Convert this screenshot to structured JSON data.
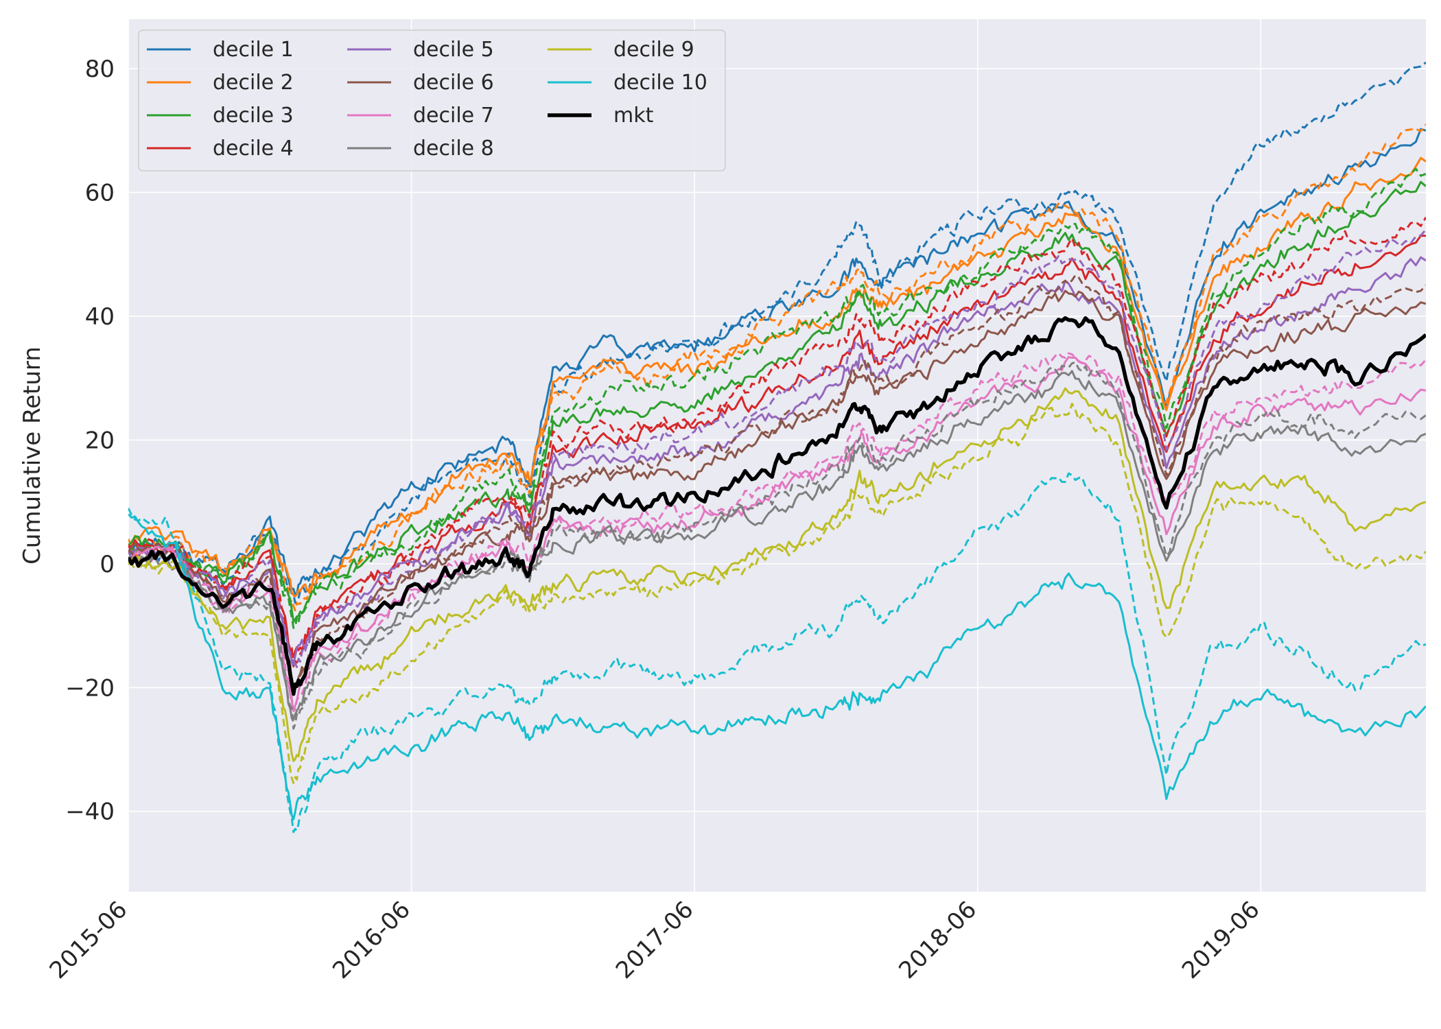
{
  "chart_data": {
    "type": "line",
    "title": "",
    "xlabel": "",
    "ylabel": "Cumulative Return",
    "x_tick_labels": [
      "2015-06",
      "2016-06",
      "2017-06",
      "2018-06",
      "2019-06"
    ],
    "x_tick_dates": [
      "2015-06",
      "2016-06",
      "2017-06",
      "2018-06",
      "2019-06"
    ],
    "xlim": [
      "2015-06",
      "2020-01"
    ],
    "y_ticks": [
      -40,
      -20,
      0,
      20,
      40,
      60,
      80
    ],
    "ylim": [
      -53,
      88
    ],
    "grid": true,
    "background": "#eaeaf2",
    "legend_position": "upper-left",
    "legend_columns": 3,
    "note_styles": "Each decile appears twice: one solid and one dashed line in the same color; mkt is a thick black solid line.",
    "x_dates": [
      "2015-06",
      "2015-08",
      "2015-10",
      "2015-12",
      "2016-01",
      "2016-02",
      "2016-04",
      "2016-06",
      "2016-08",
      "2016-10",
      "2016-11",
      "2016-12",
      "2017-02",
      "2017-04",
      "2017-06",
      "2017-08",
      "2017-10",
      "2017-12",
      "2018-01",
      "2018-02",
      "2018-04",
      "2018-06",
      "2018-08",
      "2018-10",
      "2018-12",
      "2019-02",
      "2019-04",
      "2019-06",
      "2019-08",
      "2019-10",
      "2020-01"
    ],
    "series": [
      {
        "name": "decile 1",
        "color": "#1f77b4",
        "solid": [
          2,
          3,
          -2,
          7,
          -5,
          -1,
          5,
          12,
          17,
          20,
          14,
          30,
          35,
          35,
          35,
          40,
          42,
          45,
          49,
          46,
          50,
          53,
          56,
          57,
          52,
          25,
          50,
          57,
          60,
          64,
          70
        ],
        "dashed": [
          1,
          2,
          -3,
          5,
          -6,
          -3,
          3,
          10,
          14,
          18,
          12,
          28,
          32,
          35,
          36,
          38,
          44,
          50,
          54,
          46,
          52,
          56,
          58,
          60,
          56,
          30,
          58,
          68,
          70,
          74,
          81
        ]
      },
      {
        "name": "decile 2",
        "color": "#ff7f0e",
        "solid": [
          4,
          5,
          -1,
          6,
          -5,
          -2,
          3,
          9,
          15,
          18,
          14,
          28,
          32,
          31,
          31,
          35,
          38,
          40,
          44,
          42,
          45,
          49,
          52,
          56,
          50,
          24,
          46,
          52,
          56,
          60,
          65
        ],
        "dashed": [
          3,
          4,
          -2,
          5,
          -7,
          -3,
          2,
          7,
          13,
          16,
          12,
          27,
          31,
          30,
          33,
          36,
          41,
          44,
          47,
          43,
          47,
          51,
          54,
          58,
          53,
          26,
          48,
          55,
          60,
          64,
          71
        ]
      },
      {
        "name": "decile 3",
        "color": "#2ca02c",
        "solid": [
          3,
          3,
          -3,
          4,
          -9,
          -4,
          0,
          5,
          8,
          12,
          9,
          22,
          24,
          25,
          26,
          30,
          34,
          37,
          42,
          38,
          43,
          47,
          50,
          53,
          47,
          21,
          42,
          48,
          52,
          56,
          61
        ],
        "dashed": [
          3,
          3,
          -3,
          3,
          -10,
          -5,
          0,
          4,
          10,
          14,
          11,
          24,
          27,
          28,
          30,
          33,
          37,
          40,
          44,
          40,
          44,
          48,
          51,
          55,
          49,
          22,
          44,
          51,
          55,
          58,
          63
        ]
      },
      {
        "name": "decile 4",
        "color": "#d62728",
        "solid": [
          3,
          3,
          -4,
          2,
          -15,
          -7,
          -3,
          2,
          6,
          10,
          7,
          18,
          20,
          21,
          22,
          25,
          29,
          32,
          36,
          33,
          38,
          42,
          45,
          48,
          43,
          18,
          37,
          42,
          45,
          48,
          53
        ],
        "dashed": [
          3,
          3,
          -4,
          1,
          -16,
          -8,
          -4,
          1,
          7,
          11,
          8,
          19,
          22,
          22,
          24,
          28,
          32,
          35,
          40,
          36,
          41,
          45,
          48,
          52,
          46,
          20,
          41,
          46,
          49,
          53,
          56
        ]
      },
      {
        "name": "decile 5",
        "color": "#9467bd",
        "solid": [
          2,
          2,
          -5,
          0,
          -17,
          -9,
          -5,
          0,
          4,
          8,
          6,
          15,
          17,
          17,
          18,
          21,
          25,
          28,
          33,
          30,
          35,
          39,
          42,
          45,
          40,
          16,
          34,
          38,
          41,
          44,
          49
        ],
        "dashed": [
          2,
          2,
          -5,
          0,
          -18,
          -10,
          -6,
          0,
          5,
          9,
          7,
          17,
          19,
          20,
          21,
          24,
          28,
          31,
          36,
          33,
          38,
          42,
          46,
          50,
          44,
          18,
          38,
          43,
          46,
          50,
          54
        ]
      },
      {
        "name": "decile 6",
        "color": "#8c564b",
        "solid": [
          2,
          2,
          -6,
          -2,
          -20,
          -11,
          -7,
          -1,
          2,
          6,
          4,
          12,
          14,
          14,
          15,
          18,
          22,
          25,
          30,
          27,
          32,
          36,
          40,
          44,
          38,
          14,
          32,
          36,
          38,
          40,
          42
        ],
        "dashed": [
          2,
          2,
          -6,
          -2,
          -21,
          -12,
          -8,
          -2,
          3,
          7,
          5,
          13,
          15,
          16,
          17,
          20,
          24,
          27,
          32,
          29,
          34,
          38,
          42,
          46,
          40,
          15,
          34,
          38,
          40,
          42,
          45
        ]
      },
      {
        "name": "decile 7",
        "color": "#e377c2",
        "solid": [
          1,
          1,
          -7,
          -4,
          -22,
          -14,
          -10,
          -4,
          -1,
          3,
          0,
          5,
          6,
          6,
          6,
          9,
          12,
          15,
          20,
          17,
          22,
          26,
          29,
          32,
          28,
          6,
          22,
          25,
          26,
          24,
          28
        ],
        "dashed": [
          1,
          1,
          -7,
          -4,
          -23,
          -15,
          -11,
          -5,
          0,
          4,
          1,
          6,
          7,
          8,
          8,
          11,
          14,
          17,
          22,
          19,
          24,
          28,
          31,
          34,
          30,
          8,
          24,
          27,
          28,
          28,
          33
        ]
      },
      {
        "name": "decile 8",
        "color": "#7f7f7f",
        "solid": [
          1,
          0,
          -8,
          -6,
          -25,
          -16,
          -12,
          -6,
          -2,
          2,
          -1,
          3,
          4,
          4,
          4,
          7,
          10,
          13,
          18,
          15,
          20,
          24,
          27,
          30,
          26,
          0,
          19,
          22,
          21,
          18,
          21
        ],
        "dashed": [
          1,
          0,
          -8,
          -6,
          -26,
          -17,
          -13,
          -7,
          -2,
          1,
          -2,
          4,
          5,
          5,
          6,
          9,
          12,
          15,
          20,
          17,
          22,
          26,
          29,
          32,
          28,
          2,
          21,
          24,
          24,
          22,
          24
        ]
      },
      {
        "name": "decile 9",
        "color": "#bcbd22",
        "solid": [
          0,
          -1,
          -10,
          -10,
          -33,
          -22,
          -18,
          -12,
          -8,
          -4,
          -6,
          -4,
          -2,
          -2,
          -2,
          1,
          4,
          7,
          14,
          10,
          15,
          20,
          24,
          28,
          22,
          -8,
          12,
          14,
          13,
          6,
          10
        ],
        "dashed": [
          0,
          -1,
          -11,
          -12,
          -36,
          -25,
          -21,
          -15,
          -10,
          -6,
          -8,
          -6,
          -4,
          -4,
          -3,
          -1,
          2,
          5,
          12,
          8,
          13,
          17,
          21,
          25,
          20,
          -12,
          9,
          10,
          7,
          -2,
          2
        ]
      },
      {
        "name": "decile 10",
        "color": "#17becf",
        "solid": [
          8,
          2,
          -20,
          -20,
          -40,
          -35,
          -32,
          -30,
          -27,
          -25,
          -28,
          -26,
          -26,
          -27,
          -27,
          -25,
          -24,
          -23,
          -21,
          -22,
          -17,
          -12,
          -6,
          -2,
          -6,
          -38,
          -25,
          -20,
          -24,
          -28,
          -23
        ],
        "dashed": [
          9,
          5,
          -18,
          -18,
          -44,
          -33,
          -28,
          -25,
          -22,
          -20,
          -22,
          -18,
          -17,
          -18,
          -18,
          -15,
          -12,
          -10,
          -5,
          -9,
          -2,
          5,
          10,
          14,
          8,
          -33,
          -14,
          -10,
          -14,
          -20,
          -13
        ]
      },
      {
        "name": "mkt",
        "color": "#000000",
        "solid": [
          1,
          1,
          -6,
          -4,
          -20,
          -13,
          -9,
          -4,
          -1,
          2,
          0,
          8,
          10,
          10,
          11,
          14,
          18,
          21,
          26,
          22,
          26,
          32,
          36,
          40,
          35,
          8,
          28,
          32,
          33,
          30,
          37
        ],
        "dashed": null
      }
    ]
  }
}
